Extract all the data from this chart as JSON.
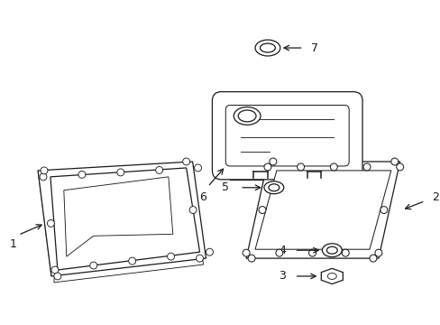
{
  "background_color": "#ffffff",
  "line_color": "#1a1a1a",
  "figsize": [
    4.89,
    3.6
  ],
  "dpi": 100,
  "lw": 0.9
}
